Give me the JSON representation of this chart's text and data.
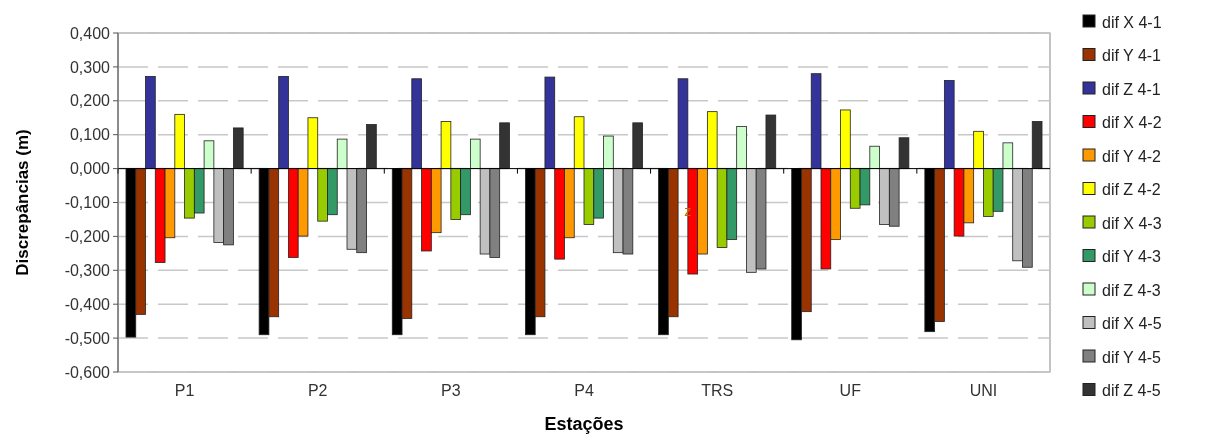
{
  "chart_data": {
    "type": "bar",
    "xlabel": "Estações",
    "ylabel": "Discrepâncias (m)",
    "categories": [
      "P1",
      "P2",
      "P3",
      "P4",
      "TRS",
      "UF",
      "UNI"
    ],
    "series": [
      {
        "name": "dif X 4-1",
        "color": "#000000",
        "values": [
          -0.497,
          -0.49,
          -0.49,
          -0.49,
          -0.49,
          -0.505,
          -0.481
        ]
      },
      {
        "name": "dif Y 4-1",
        "color": "#993300",
        "values": [
          -0.43,
          -0.437,
          -0.442,
          -0.437,
          -0.437,
          -0.422,
          -0.451
        ]
      },
      {
        "name": "dif Z 4-1",
        "color": "#333399",
        "values": [
          0.272,
          0.272,
          0.265,
          0.27,
          0.265,
          0.28,
          0.26
        ]
      },
      {
        "name": "dif X 4-2",
        "color": "#ff0000",
        "values": [
          -0.277,
          -0.262,
          -0.243,
          -0.267,
          -0.311,
          -0.296,
          -0.199
        ]
      },
      {
        "name": "dif Y 4-2",
        "color": "#ff9900",
        "values": [
          -0.204,
          -0.199,
          -0.189,
          -0.204,
          -0.252,
          -0.209,
          -0.16
        ]
      },
      {
        "name": "dif Z 4-2",
        "color": "#ffff00",
        "values": [
          0.16,
          0.15,
          0.139,
          0.153,
          0.168,
          0.173,
          0.11
        ]
      },
      {
        "name": "dif X 4-3",
        "color": "#99cc00",
        "values": [
          -0.146,
          -0.155,
          -0.15,
          -0.165,
          -0.233,
          -0.117,
          -0.141
        ]
      },
      {
        "name": "dif Y 4-3",
        "color": "#339966",
        "values": [
          -0.131,
          -0.136,
          -0.136,
          -0.146,
          -0.209,
          -0.107,
          -0.126
        ]
      },
      {
        "name": "dif Z 4-3",
        "color": "#ccffcc",
        "values": [
          0.082,
          0.087,
          0.087,
          0.096,
          0.124,
          0.066,
          0.076
        ]
      },
      {
        "name": "dif X 4-5",
        "color": "#c0c0c0",
        "values": [
          -0.218,
          -0.238,
          -0.252,
          -0.248,
          -0.306,
          -0.165,
          -0.272
        ]
      },
      {
        "name": "dif Y 4-5",
        "color": "#808080",
        "values": [
          -0.225,
          -0.248,
          -0.262,
          -0.252,
          -0.296,
          -0.17,
          -0.291
        ]
      },
      {
        "name": "dif Z 4-5",
        "color": "#333333",
        "values": [
          0.12,
          0.13,
          0.135,
          0.135,
          0.158,
          0.091,
          0.139
        ]
      }
    ],
    "ylim": [
      -0.6,
      0.4
    ],
    "yticks": [
      {
        "value": -0.6,
        "label": "-0,600"
      },
      {
        "value": -0.5,
        "label": "-0,500"
      },
      {
        "value": -0.4,
        "label": "-0,400"
      },
      {
        "value": -0.3,
        "label": "-0,300"
      },
      {
        "value": -0.2,
        "label": "-0,200"
      },
      {
        "value": -0.1,
        "label": "-0,100"
      },
      {
        "value": 0,
        "label": "0,000"
      },
      {
        "value": 0.1,
        "label": "0,100"
      },
      {
        "value": 0.2,
        "label": "0,200"
      },
      {
        "value": 0.3,
        "label": "0,300"
      },
      {
        "value": 0.4,
        "label": "0,400"
      }
    ],
    "grid": "y",
    "legend": "right",
    "annotations": [
      {
        "text": "z",
        "x": "TRS",
        "y": -0.14
      }
    ]
  }
}
